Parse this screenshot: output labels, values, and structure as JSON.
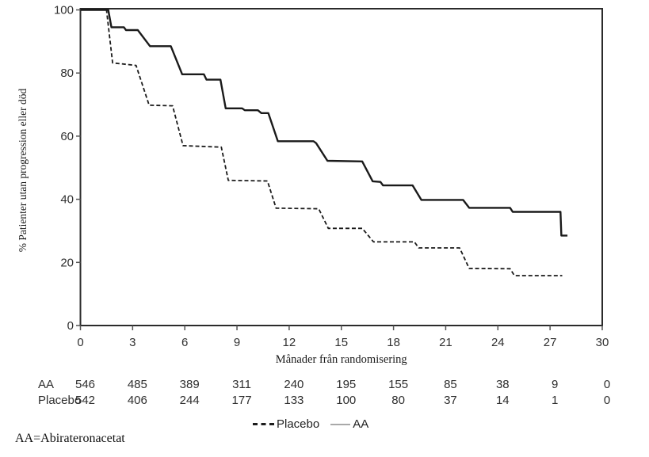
{
  "chart_data": {
    "type": "line",
    "subtype": "kaplan-meier-step",
    "title": "",
    "xlabel": "Månader från randomisering",
    "ylabel": "% Patienter utan progression eller död",
    "xlim": [
      0,
      30
    ],
    "ylim": [
      0,
      100
    ],
    "x_ticks": [
      0,
      3,
      6,
      9,
      12,
      15,
      18,
      21,
      24,
      27,
      30
    ],
    "y_ticks": [
      0,
      20,
      40,
      60,
      80,
      100
    ],
    "grid": false,
    "legend_position": "bottom",
    "line_color": "#1a1a1a",
    "series": [
      {
        "name": "AA",
        "style": "solid",
        "color": "#1a1a1a",
        "points": [
          [
            0,
            100
          ],
          [
            1.6,
            100
          ],
          [
            1.78,
            94.5
          ],
          [
            2.5,
            94.5
          ],
          [
            2.62,
            93.6
          ],
          [
            3.3,
            93.6
          ],
          [
            4.0,
            88.5
          ],
          [
            5.2,
            88.5
          ],
          [
            5.85,
            79.6
          ],
          [
            7.1,
            79.6
          ],
          [
            7.25,
            77.9
          ],
          [
            8.05,
            77.9
          ],
          [
            8.35,
            68.8
          ],
          [
            9.3,
            68.8
          ],
          [
            9.45,
            68.2
          ],
          [
            10.2,
            68.2
          ],
          [
            10.4,
            67.3
          ],
          [
            10.8,
            67.3
          ],
          [
            11.35,
            58.4
          ],
          [
            13.4,
            58.4
          ],
          [
            13.55,
            57.8
          ],
          [
            14.2,
            52.2
          ],
          [
            16.2,
            52.0
          ],
          [
            16.8,
            45.7
          ],
          [
            17.25,
            45.5
          ],
          [
            17.4,
            44.4
          ],
          [
            19.1,
            44.4
          ],
          [
            19.6,
            39.8
          ],
          [
            22.0,
            39.8
          ],
          [
            22.35,
            37.3
          ],
          [
            24.7,
            37.3
          ],
          [
            24.85,
            36.0
          ],
          [
            27.6,
            36.0
          ],
          [
            27.65,
            28.5
          ],
          [
            28.0,
            28.5
          ]
        ]
      },
      {
        "name": "Placebo",
        "style": "dashed",
        "color": "#1a1a1a",
        "points": [
          [
            0,
            100
          ],
          [
            1.5,
            100
          ],
          [
            1.85,
            83.2
          ],
          [
            3.2,
            82.4
          ],
          [
            3.95,
            69.8
          ],
          [
            5.3,
            69.6
          ],
          [
            5.9,
            57.0
          ],
          [
            8.1,
            56.5
          ],
          [
            8.5,
            46.0
          ],
          [
            10.75,
            45.8
          ],
          [
            11.25,
            37.2
          ],
          [
            13.7,
            37.0
          ],
          [
            14.25,
            30.8
          ],
          [
            16.2,
            30.8
          ],
          [
            16.85,
            26.5
          ],
          [
            19.2,
            26.5
          ],
          [
            19.45,
            24.6
          ],
          [
            21.8,
            24.6
          ],
          [
            22.35,
            18.1
          ],
          [
            24.7,
            18.0
          ],
          [
            24.95,
            15.8
          ],
          [
            27.7,
            15.8
          ]
        ]
      }
    ],
    "risk_table": {
      "columns": [
        0,
        3,
        6,
        9,
        12,
        15,
        18,
        21,
        24,
        27,
        30
      ],
      "rows": [
        {
          "label": "AA",
          "values": [
            546,
            485,
            389,
            311,
            240,
            195,
            155,
            85,
            38,
            9,
            0
          ]
        },
        {
          "label": "Placebo",
          "values": [
            542,
            406,
            244,
            177,
            133,
            100,
            80,
            37,
            14,
            1,
            0
          ]
        }
      ]
    },
    "legend": [
      {
        "label": "Placebo",
        "line": "dashed",
        "color": "#1c1c1c"
      },
      {
        "label": "AA",
        "line": "solid",
        "color": "#a9a9a9"
      }
    ]
  },
  "footnote": "AA=Abirateronacetat"
}
